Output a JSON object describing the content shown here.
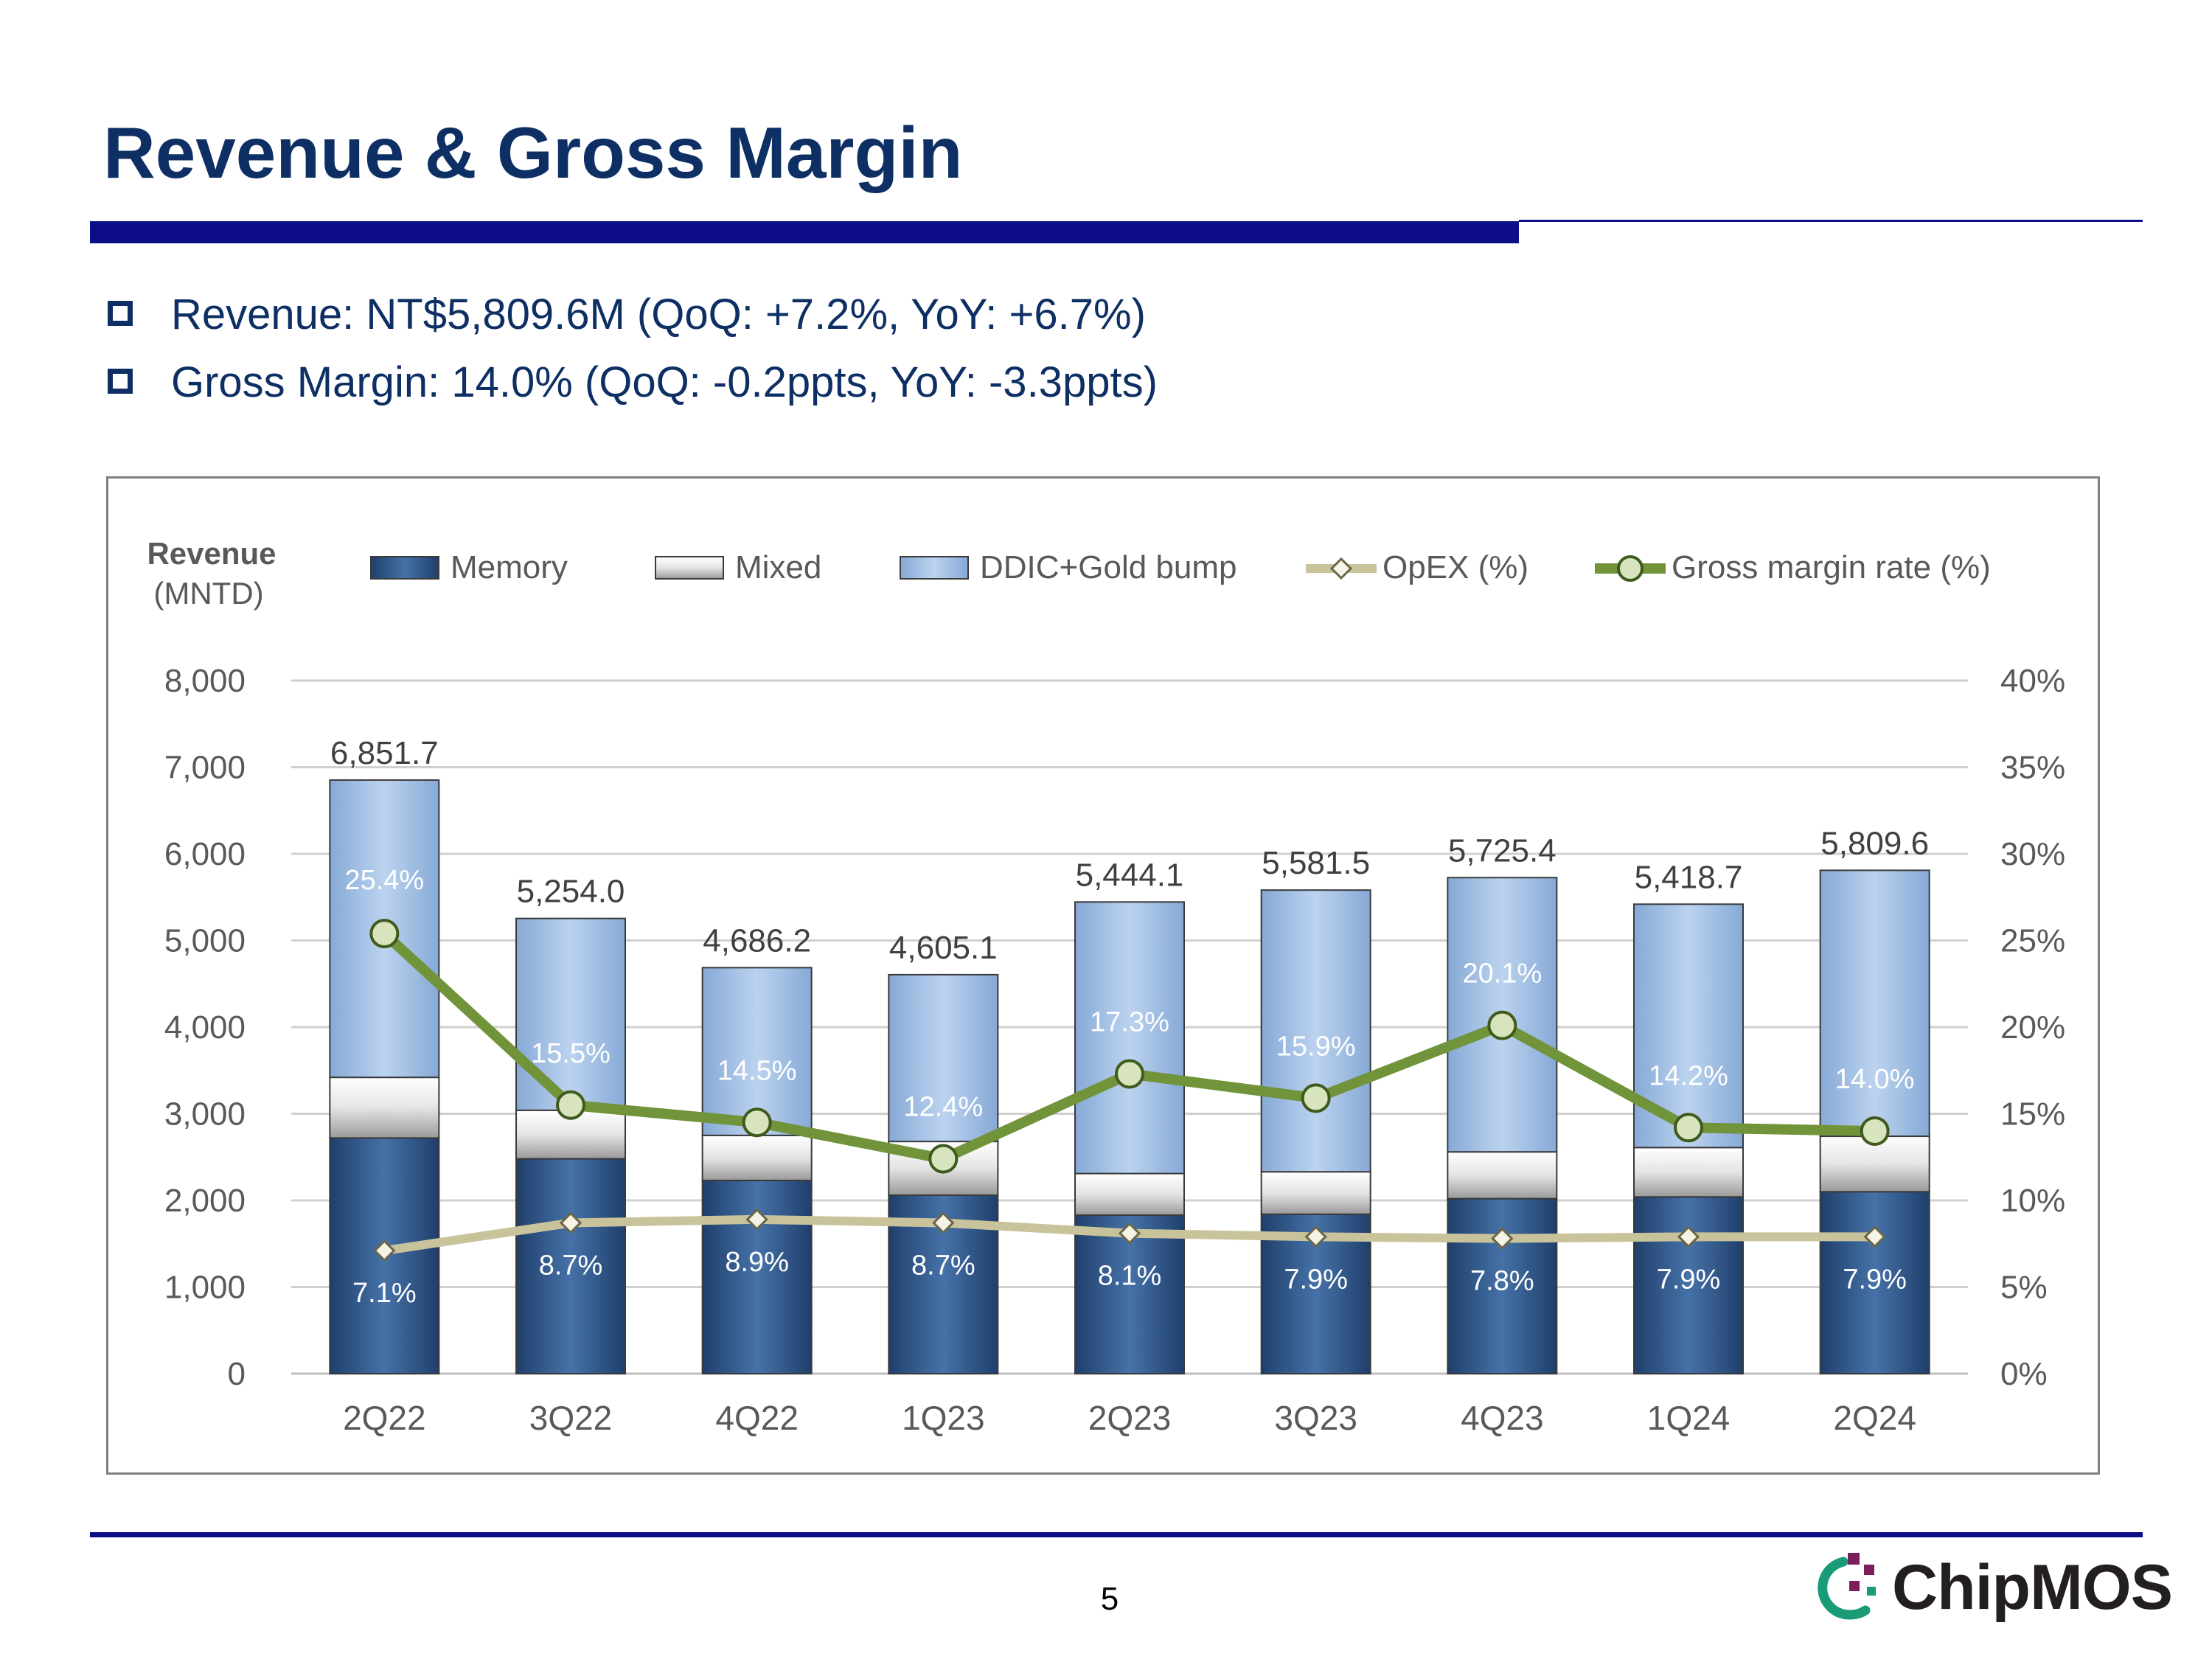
{
  "slide": {
    "title": "Revenue & Gross Margin",
    "bullets": [
      "Revenue: NT$5,809.6M (QoQ: +7.2%, YoY: +6.7%)",
      "Gross Margin: 14.0% (QoQ: -0.2ppts, YoY: -3.3ppts)"
    ],
    "page_number": "5",
    "logo_text": "ChipMOS"
  },
  "chart_data": {
    "type": "bar",
    "subtype": "stacked-bar-with-lines",
    "ylabel": "Revenue",
    "ylabel_unit": "(MNTD)",
    "ylim": [
      0,
      8000
    ],
    "y_ticks": [
      "0",
      "1,000",
      "2,000",
      "3,000",
      "4,000",
      "5,000",
      "6,000",
      "7,000",
      "8,000"
    ],
    "y2lim": [
      0,
      40
    ],
    "y2_ticks": [
      "0%",
      "5%",
      "10%",
      "15%",
      "20%",
      "25%",
      "30%",
      "35%",
      "40%"
    ],
    "categories": [
      "2Q22",
      "3Q22",
      "4Q22",
      "1Q23",
      "2Q23",
      "3Q23",
      "4Q23",
      "1Q24",
      "2Q24"
    ],
    "legend": [
      "Memory",
      "Mixed",
      "DDIC+Gold bump",
      "OpEX (%)",
      "Gross margin rate (%)"
    ],
    "legend_position": "top",
    "grid": true,
    "series": [
      {
        "name": "Memory",
        "kind": "bar",
        "color": "#2e5a8f",
        "values": [
          2720,
          2480,
          2230,
          2060,
          1830,
          1840,
          2020,
          2040,
          2100
        ]
      },
      {
        "name": "Mixed",
        "kind": "bar",
        "color": "#e6e6e6",
        "values": [
          700,
          560,
          520,
          620,
          480,
          490,
          540,
          570,
          640
        ]
      },
      {
        "name": "DDIC+Gold bump",
        "kind": "bar",
        "color": "#a6c3e6",
        "values": [
          3431.7,
          2214.0,
          1936.2,
          1925.1,
          3134.1,
          3251.5,
          3165.4,
          2808.7,
          3069.6
        ]
      },
      {
        "name": "OpEX (%)",
        "kind": "line",
        "axis": "right",
        "color": "#c9c39b",
        "values": [
          7.1,
          8.7,
          8.9,
          8.7,
          8.1,
          7.9,
          7.8,
          7.9,
          7.9
        ],
        "labels": [
          "7.1%",
          "8.7%",
          "8.9%",
          "8.7%",
          "8.1%",
          "7.9%",
          "7.8%",
          "7.9%",
          "7.9%"
        ]
      },
      {
        "name": "Gross margin rate (%)",
        "kind": "line",
        "axis": "right",
        "color": "#71933a",
        "values": [
          25.4,
          15.5,
          14.5,
          12.4,
          17.3,
          15.9,
          20.1,
          14.2,
          14.0
        ],
        "labels": [
          "25.4%",
          "15.5%",
          "14.5%",
          "12.4%",
          "17.3%",
          "15.9%",
          "20.1%",
          "14.2%",
          "14.0%"
        ]
      }
    ],
    "totals": [
      6851.7,
      5254.0,
      4686.2,
      4605.1,
      5444.1,
      5581.5,
      5725.4,
      5418.7,
      5809.6
    ],
    "total_labels": [
      "6,851.7",
      "5,254.0",
      "4,686.2",
      "4,605.1",
      "5,444.1",
      "5,581.5",
      "5,725.4",
      "5,418.7",
      "5,809.6"
    ]
  }
}
